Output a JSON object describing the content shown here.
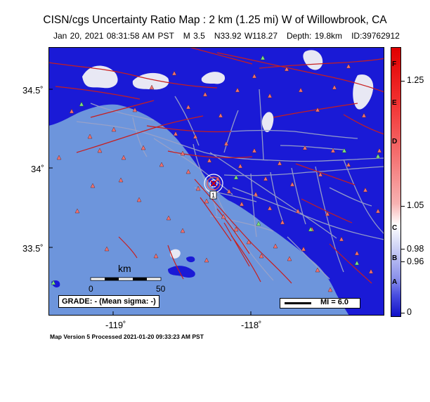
{
  "header": {
    "title": "CISN/cgs Uncertainty Ratio Map : 2 km (1.25 mi) W of Willowbrook, CA",
    "datetime": "Jan 20, 2021 08:31:58 AM PST",
    "magnitude": "M 3.5",
    "location": "N33.92 W118.27",
    "depth": "Depth: 19.8km",
    "event_id": "ID:39762912"
  },
  "axes": {
    "lat_labels": [
      "34.5˚",
      "34˚",
      "33.5˚"
    ],
    "lon_labels": [
      "-119˚",
      "-118˚"
    ]
  },
  "scale": {
    "unit": "km",
    "min": "0",
    "max": "50"
  },
  "grade": "GRADE: - (Mean sigma: -)",
  "mi_legend": "MI = 6.0",
  "epicenter_label": "1",
  "colorbar": {
    "letters": [
      "F",
      "E",
      "D",
      "C",
      "B",
      "A"
    ],
    "values": [
      "1.25",
      "1.05",
      "0.98",
      "0.96",
      "0"
    ]
  },
  "footer": "Map Version 5 Processed 2021-01-20 09:33:23 AM PST",
  "colors": {
    "land": "#1a1ad6",
    "ocean": "#6d95dc",
    "fault": "#c81e1e",
    "road": "#9aa2c8",
    "station_red": "#f07070",
    "station_green": "#7fe07f"
  }
}
